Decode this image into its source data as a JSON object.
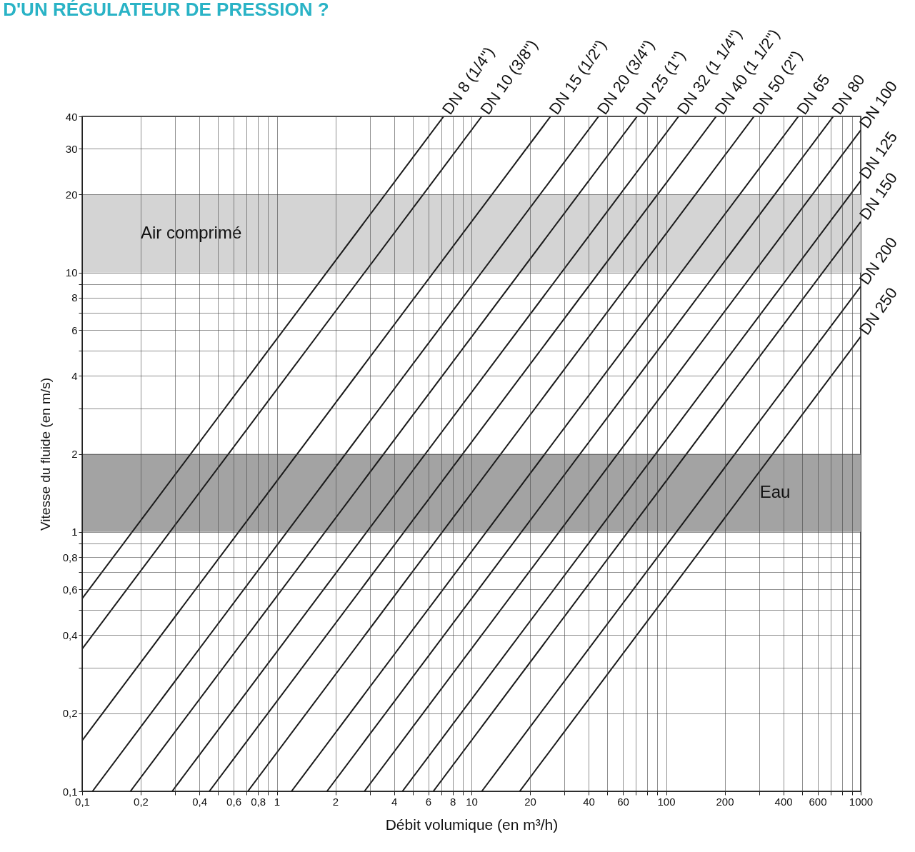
{
  "chart_data": {
    "type": "line",
    "title": "D'UN RÉGULATEUR DE PRESSION ?",
    "xlabel": "Débit volumique (en m³/h)",
    "ylabel": "Vitesse du fluide (en m/s)",
    "log": "xy",
    "grid": true,
    "legend": false,
    "marker": "none",
    "line_style": "solid",
    "xlim": [
      0.1,
      1000
    ],
    "ylim": [
      0.1,
      40
    ],
    "xticks": [
      {
        "value": 0.1,
        "label": "0,1"
      },
      {
        "value": 0.2,
        "label": "0,2"
      },
      {
        "value": 0.3,
        "label": null
      },
      {
        "value": 0.4,
        "label": "0,4"
      },
      {
        "value": 0.5,
        "label": null
      },
      {
        "value": 0.6,
        "label": "0,6"
      },
      {
        "value": 0.7,
        "label": null
      },
      {
        "value": 0.8,
        "label": "0,8"
      },
      {
        "value": 0.9,
        "label": null
      },
      1,
      2,
      {
        "value": 3,
        "label": null
      },
      4,
      {
        "value": 5,
        "label": null
      },
      6,
      {
        "value": 7,
        "label": null
      },
      8,
      {
        "value": 9,
        "label": null
      },
      10,
      20,
      {
        "value": 30,
        "label": null
      },
      40,
      {
        "value": 50,
        "label": null
      },
      60,
      {
        "value": 70,
        "label": null
      },
      {
        "value": 80,
        "label": null
      },
      {
        "value": 90,
        "label": null
      },
      100,
      200,
      {
        "value": 300,
        "label": null
      },
      400,
      {
        "value": 500,
        "label": null
      },
      600,
      {
        "value": 700,
        "label": null
      },
      {
        "value": 800,
        "label": null
      },
      {
        "value": 900,
        "label": null
      },
      1000
    ],
    "yticks": [
      {
        "value": 0.1,
        "label": "0,1"
      },
      {
        "value": 0.2,
        "label": "0,2"
      },
      {
        "value": 0.3,
        "label": null
      },
      {
        "value": 0.4,
        "label": "0,4"
      },
      {
        "value": 0.5,
        "label": null
      },
      {
        "value": 0.6,
        "label": "0,6"
      },
      {
        "value": 0.7,
        "label": null
      },
      {
        "value": 0.8,
        "label": "0,8"
      },
      {
        "value": 0.9,
        "label": null
      },
      1,
      2,
      {
        "value": 3,
        "label": null
      },
      4,
      {
        "value": 5,
        "label": null
      },
      6,
      {
        "value": 7,
        "label": null
      },
      8,
      {
        "value": 9,
        "label": null
      },
      10,
      20,
      30,
      40
    ],
    "bands": [
      {
        "axis": "y",
        "from": 10,
        "to": 20,
        "label": "Air comprimé",
        "color": "#d4d4d4"
      },
      {
        "axis": "y",
        "from": 1,
        "to": 2,
        "label": "Eau",
        "color": "#a3a3a3"
      }
    ],
    "series": [
      {
        "name": "DN 8 (1/4\")",
        "color": "#1a1a1a",
        "x": [
          0.1,
          7.2
        ],
        "values": [
          0.553,
          40
        ]
      },
      {
        "name": "DN 10 (3/8\")",
        "color": "#1a1a1a",
        "x": [
          0.1,
          11.3
        ],
        "values": [
          0.354,
          40
        ]
      },
      {
        "name": "DN 15 (1/2\")",
        "color": "#1a1a1a",
        "x": [
          0.1,
          25.5
        ],
        "values": [
          0.157,
          40
        ]
      },
      {
        "name": "DN 20 (3/4\")",
        "color": "#1a1a1a",
        "x": [
          0.113,
          45
        ],
        "values": [
          0.1,
          40
        ]
      },
      {
        "name": "DN 25 (1\")",
        "color": "#1a1a1a",
        "x": [
          0.177,
          71
        ],
        "values": [
          0.1,
          40
        ]
      },
      {
        "name": "DN 32 (1 1/4\")",
        "color": "#1a1a1a",
        "x": [
          0.29,
          116
        ],
        "values": [
          0.1,
          40
        ]
      },
      {
        "name": "DN 40 (1 1/2\")",
        "color": "#1a1a1a",
        "x": [
          0.45,
          181
        ],
        "values": [
          0.1,
          40
        ]
      },
      {
        "name": "DN 50 (2\")",
        "color": "#1a1a1a",
        "x": [
          0.71,
          283
        ],
        "values": [
          0.1,
          40
        ]
      },
      {
        "name": "DN 65",
        "color": "#1a1a1a",
        "x": [
          1.19,
          478
        ],
        "values": [
          0.1,
          40
        ]
      },
      {
        "name": "DN 80",
        "color": "#1a1a1a",
        "x": [
          1.81,
          723
        ],
        "values": [
          0.1,
          40
        ]
      },
      {
        "name": "DN 100",
        "color": "#1a1a1a",
        "x": [
          2.82,
          1000
        ],
        "values": [
          0.1,
          35.4
        ]
      },
      {
        "name": "DN 125",
        "color": "#1a1a1a",
        "x": [
          4.42,
          1000
        ],
        "values": [
          0.1,
          22.6
        ]
      },
      {
        "name": "DN 150",
        "color": "#1a1a1a",
        "x": [
          6.37,
          1000
        ],
        "values": [
          0.1,
          15.7
        ]
      },
      {
        "name": "DN 200",
        "color": "#1a1a1a",
        "x": [
          11.3,
          1000
        ],
        "values": [
          0.1,
          8.84
        ]
      },
      {
        "name": "DN 250",
        "color": "#1a1a1a",
        "x": [
          17.7,
          1000
        ],
        "values": [
          0.1,
          5.66
        ]
      }
    ]
  }
}
